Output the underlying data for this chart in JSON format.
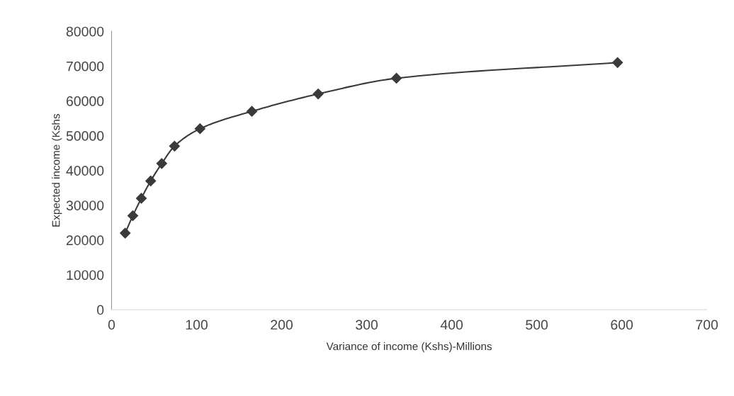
{
  "chart_data": {
    "type": "line",
    "xlabel": "Variance of income (Kshs)-Millions",
    "ylabel": "Expected income (Kshs",
    "x": [
      16,
      25,
      35,
      46,
      59,
      74,
      104,
      165,
      243,
      335,
      595
    ],
    "values": [
      22000,
      27000,
      32000,
      37000,
      42000,
      47000,
      52000,
      57000,
      62000,
      66500,
      71000
    ],
    "color": "#3a3a3a",
    "marker": "diamond",
    "line_style": "solid",
    "xlim": [
      0,
      700
    ],
    "ylim": [
      0,
      80000
    ],
    "xticks": [
      0,
      100,
      200,
      300,
      400,
      500,
      600,
      700
    ],
    "yticks": [
      0,
      10000,
      20000,
      30000,
      40000,
      50000,
      60000,
      70000,
      80000
    ],
    "grid": false,
    "legend": false
  }
}
